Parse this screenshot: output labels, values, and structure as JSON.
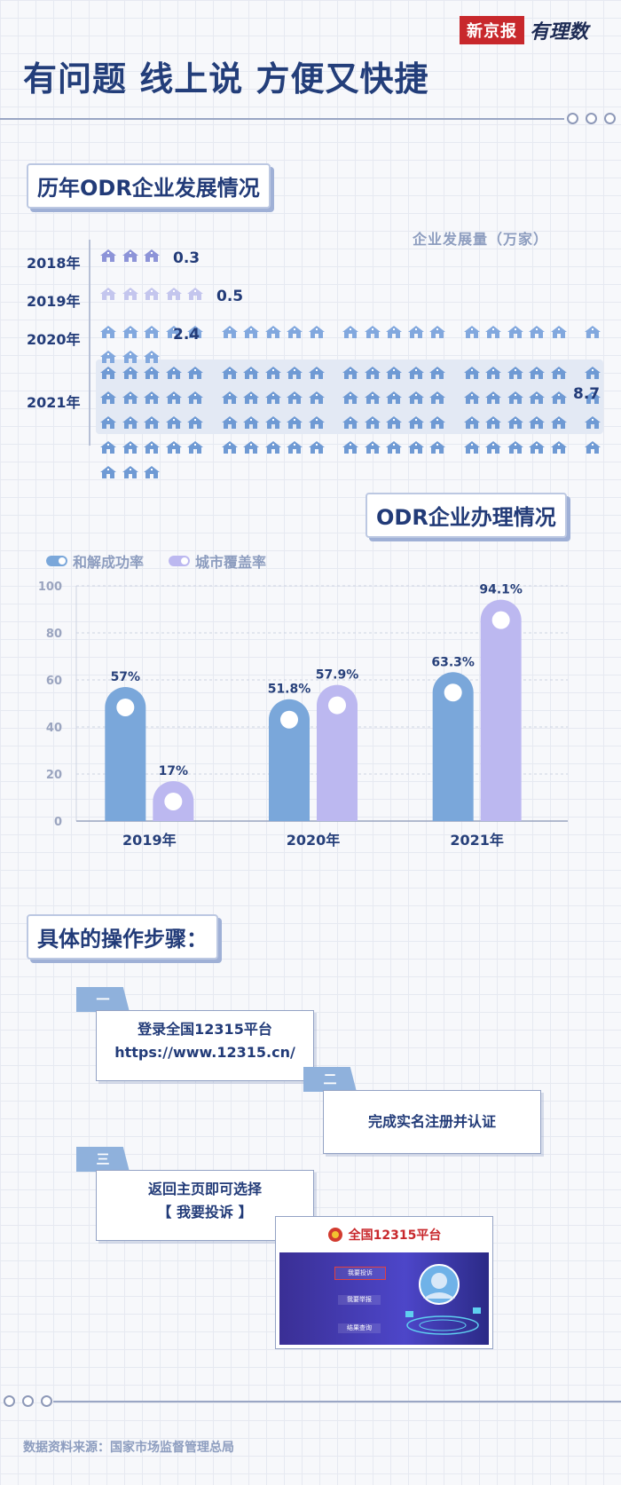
{
  "brand": {
    "logo_text": "新京报",
    "sub_logo": "有理数"
  },
  "title": "有问题 线上说 方便又快捷",
  "section1": {
    "title": "历年ODR企业发展情况",
    "unit": "企业发展量（万家）",
    "rows": [
      {
        "year": "2018年",
        "value": 0.3,
        "label": "0.3"
      },
      {
        "year": "2019年",
        "value": 0.5,
        "label": "0.5"
      },
      {
        "year": "2020年",
        "value": 2.4,
        "label": "2.4"
      },
      {
        "year": "2021年",
        "value": 8.7,
        "label": "8.7"
      }
    ]
  },
  "section2": {
    "title": "ODR企业办理情况"
  },
  "chart_data": {
    "type": "bar",
    "title": "ODR企业办理情况",
    "categories": [
      "2019年",
      "2020年",
      "2021年"
    ],
    "series": [
      {
        "name": "和解成功率",
        "values": [
          57,
          51.8,
          63.3
        ],
        "labels": [
          "57%",
          "51.8%",
          "63.3%"
        ],
        "color": "#7aa7da"
      },
      {
        "name": "城市覆盖率",
        "values": [
          17,
          57.9,
          94.1
        ],
        "labels": [
          "17%",
          "57.9%",
          "94.1%"
        ],
        "color": "#bcb8f0"
      }
    ],
    "yticks": [
      "0",
      "20",
      "40",
      "60",
      "80",
      "100"
    ],
    "ylim": [
      0,
      100
    ],
    "xlabel": "",
    "ylabel": "",
    "legend": "top-left",
    "grid": true
  },
  "steps": {
    "title": "具体的操作步骤：",
    "items": [
      {
        "num": "一",
        "line1": "登录全国12315平台",
        "line2": "https://www.12315.cn/"
      },
      {
        "num": "二",
        "line1": "完成实名注册并认证",
        "line2": ""
      },
      {
        "num": "三",
        "line1": "返回主页即可选择",
        "line2": "【 我要投诉 】"
      }
    ],
    "platform": {
      "name": "全国12315平台",
      "btn_complaint": "我要投诉",
      "btn_report": "我要举报",
      "btn_query": "结果查询"
    }
  },
  "source": "数据资料来源：国家市场监督管理总局"
}
